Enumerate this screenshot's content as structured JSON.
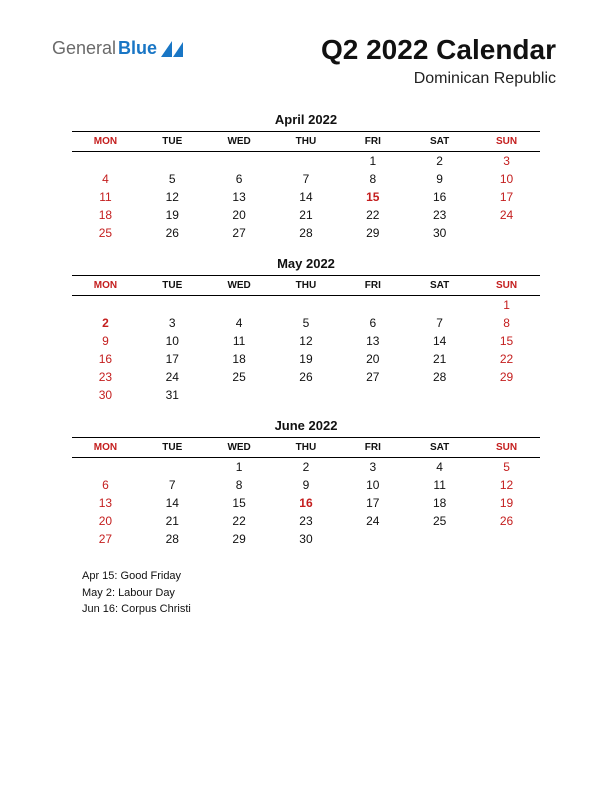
{
  "logo": {
    "text1": "General",
    "text2": "Blue"
  },
  "header": {
    "title": "Q2 2022 Calendar",
    "subtitle": "Dominican Republic"
  },
  "day_headers": [
    "MON",
    "TUE",
    "WED",
    "THU",
    "FRI",
    "SAT",
    "SUN"
  ],
  "colors": {
    "red": "#c41e1e",
    "black": "#111111",
    "logo_gray": "#6a6a6a",
    "logo_blue": "#1976c5"
  },
  "months": [
    {
      "name": "April 2022",
      "weeks": [
        [
          null,
          null,
          null,
          null,
          1,
          2,
          3
        ],
        [
          4,
          5,
          6,
          7,
          8,
          9,
          10
        ],
        [
          11,
          12,
          13,
          14,
          15,
          16,
          17
        ],
        [
          18,
          19,
          20,
          21,
          22,
          23,
          24
        ],
        [
          25,
          26,
          27,
          28,
          29,
          30,
          null
        ]
      ],
      "holidays_in_month": [
        15
      ]
    },
    {
      "name": "May 2022",
      "weeks": [
        [
          null,
          null,
          null,
          null,
          null,
          null,
          1
        ],
        [
          2,
          3,
          4,
          5,
          6,
          7,
          8
        ],
        [
          9,
          10,
          11,
          12,
          13,
          14,
          15
        ],
        [
          16,
          17,
          18,
          19,
          20,
          21,
          22
        ],
        [
          23,
          24,
          25,
          26,
          27,
          28,
          29
        ],
        [
          30,
          31,
          null,
          null,
          null,
          null,
          null
        ]
      ],
      "holidays_in_month": [
        2
      ]
    },
    {
      "name": "June 2022",
      "weeks": [
        [
          null,
          null,
          1,
          2,
          3,
          4,
          5
        ],
        [
          6,
          7,
          8,
          9,
          10,
          11,
          12
        ],
        [
          13,
          14,
          15,
          16,
          17,
          18,
          19
        ],
        [
          20,
          21,
          22,
          23,
          24,
          25,
          26
        ],
        [
          27,
          28,
          29,
          30,
          null,
          null,
          null
        ]
      ],
      "holidays_in_month": [
        16
      ]
    }
  ],
  "holiday_list": [
    "Apr 15: Good Friday",
    "May 2: Labour Day",
    "Jun 16: Corpus Christi"
  ]
}
